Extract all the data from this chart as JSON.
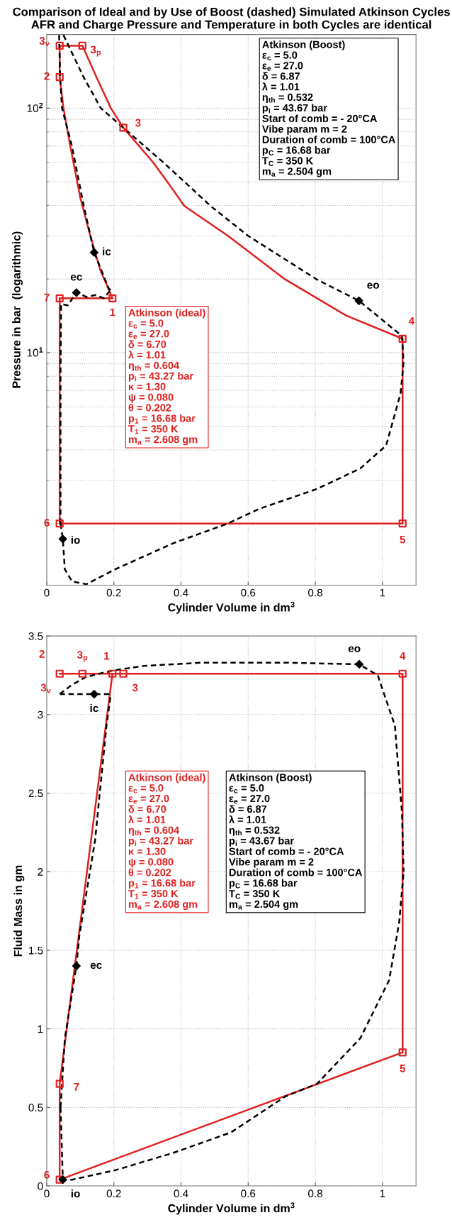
{
  "chart_data": [
    {
      "type": "line",
      "title": "Comparison of Ideal and by Use of Boost (dashed) Simulated Atkinson Cycles\nAFR and Charge Pressure and Temperature in both Cycles are identical",
      "xlabel": "Cylinder Volume in dm$^{3}$",
      "ylabel": "Pressure in bar  (logarithmic)",
      "xlim": [
        0,
        1.1
      ],
      "xticks": [
        0,
        0.2,
        0.4,
        0.6,
        0.8,
        1
      ],
      "ylim": [
        1.12,
        200
      ],
      "yticks": [
        {
          "value": 10,
          "label": "10$^{1}$"
        },
        {
          "value": 100,
          "label": "10$^{2}$"
        }
      ],
      "log": "y",
      "grid": true,
      "series": [
        {
          "line_style": "solid",
          "color": "#e02020",
          "x": [
            0.0385,
            0.05,
            0.07,
            0.1,
            0.13,
            0.16,
            0.1958,
            null,
            0.0385,
            0.0385,
            null,
            0.0385,
            0.1063,
            0.148,
            0.191,
            0.228,
            0.316,
            0.359,
            0.41,
            0.539,
            0.711,
            0.891,
            1.06,
            null,
            1.06,
            1.06,
            null,
            0.0385,
            1.06,
            null,
            0.0385,
            0.0385,
            null,
            0.0385,
            0.1958
          ],
          "values": [
            134,
            100,
            70,
            43,
            30,
            21.7,
            16.68,
            null,
            134,
            180,
            null,
            180,
            180,
            134,
            100,
            83.2,
            60.2,
            50,
            39.8,
            30.1,
            19.9,
            14.2,
            11.4,
            null,
            11.4,
            2.0,
            null,
            2.0,
            2.0,
            null,
            2.0,
            16.68,
            null,
            16.68,
            16.68
          ]
        },
        {
          "line_style": "dashed",
          "color": "#000000",
          "x": [
            0.0368,
            0.04,
            0.0455,
            0.075,
            0.11,
            0.1413,
            0.1853,
            0.191,
            null,
            0.0497,
            0.1098,
            0.161,
            0.228,
            0.346,
            0.41,
            0.488,
            0.599,
            0.805,
            0.93,
            1.058,
            1.063,
            null,
            0.0411,
            0.0479,
            0.0539,
            0.0754,
            0.118,
            0.204,
            0.376,
            0.539,
            0.634,
            0.805,
            0.934,
            1.011,
            1.054,
            1.063,
            null,
            0.0411,
            0.0411,
            0.0428,
            0.0626,
            0.0883,
            0.1184,
            0.1443,
            0.17,
            0.191
          ],
          "values": [
            199,
            134,
            100,
            70,
            40,
            25.7,
            18.2,
            18.1,
            null,
            199,
            134,
            100,
            83.2,
            60.2,
            50,
            39.8,
            30.1,
            19.9,
            16.3,
            11.7,
            9.17,
            null,
            2.0,
            1.73,
            1.3,
            1.16,
            1.13,
            1.3,
            1.66,
            2.0,
            2.3,
            2.77,
            3.36,
            4.17,
            6.81,
            9.17,
            null,
            2.0,
            8.45,
            15.8,
            15.6,
            17.6,
            16.9,
            17.2,
            16.7,
            18.1
          ]
        },
        {
          "type": "scatter",
          "marker": "square",
          "color": "#e02020",
          "x": [
            0.1958,
            0.0385,
            0.0385,
            0.1063,
            0.228,
            1.06,
            1.06,
            0.0385,
            0.0385
          ],
          "values": [
            16.68,
            134,
            180,
            180,
            83.2,
            11.4,
            2.0,
            2.0,
            16.68
          ]
        },
        {
          "type": "scatter",
          "marker": "diamond",
          "color": "#000000",
          "x": [
            0.1413,
            0.0883,
            0.93,
            0.0479
          ],
          "values": [
            25.7,
            17.6,
            16.3,
            1.73
          ]
        }
      ],
      "annotations": [
        "Atkinson (ideal)\nε$_{c}$ = 5.0\nε$_{e}$ = 27.0\nδ = 6.70\nλ = 1.01\nη$_{th}$ = 0.604\np$_{i}$ = 43.27 bar\nκ = 1.30\nψ = 0.080\nθ = 0.202\np$_{1}$ = 16.68 bar\nT$_{1}$ = 350 K\nm$_{a}$ = 2.608 gm",
        "Atkinson (Boost)\nε$_{c}$ = 5.0\nε$_{e}$ = 27.0\nδ = 6.87\nλ = 1.01\nη$_{th}$ = 0.532\np$_{i}$ = 43.67 bar\nStart of comb = - 20°CA\nVibe param m = 2\nDuration of comb = 100°CA\np$_{C}$ = 16.68 bar\nT$_{C}$ = 350 K\nm$_{a}$ = 2.504 gm",
        {
          "text": "1",
          "x": 0.1958,
          "y": 16.68
        },
        {
          "text": "2",
          "x": 0.0385,
          "y": 134
        },
        {
          "text": "3$_{v}$",
          "x": 0.0385,
          "y": 180
        },
        {
          "text": "3$_{p}$",
          "x": 0.1063,
          "y": 180
        },
        {
          "text": "3",
          "x": 0.228,
          "y": 83.2
        },
        {
          "text": "4",
          "x": 1.06,
          "y": 11.4
        },
        {
          "text": "5",
          "x": 1.06,
          "y": 2.0
        },
        {
          "text": "6",
          "x": 0.0385,
          "y": 2.0
        },
        {
          "text": "7",
          "x": 0.0385,
          "y": 16.68
        },
        {
          "text": "ic",
          "x": 0.1413,
          "y": 25.7
        },
        {
          "text": "ec",
          "x": 0.0883,
          "y": 17.6
        },
        {
          "text": "eo",
          "x": 0.93,
          "y": 16.3
        },
        {
          "text": "io",
          "x": 0.0479,
          "y": 1.73
        }
      ]
    },
    {
      "type": "line",
      "xlabel": "Cylinder Volume in dm$^{3}$",
      "ylabel": "Fluid Mass in gm",
      "xlim": [
        0,
        1.1
      ],
      "xticks": [
        0,
        0.2,
        0.4,
        0.6,
        0.8,
        1
      ],
      "ylim": [
        0,
        3.5
      ],
      "yticks": [
        0,
        0.5,
        1,
        1.5,
        2,
        2.5,
        3,
        3.5
      ],
      "grid": true,
      "series": [
        {
          "line_style": "solid",
          "color": "#e02020",
          "x": [
            0.0385,
            0.1063,
            0.1958,
            0.228,
            1.06,
            null,
            1.06,
            1.06,
            null,
            0.0385,
            1.06,
            null,
            0.0385,
            0.0385,
            null,
            0.0385,
            0.1958
          ],
          "values": [
            3.26,
            3.26,
            3.26,
            3.26,
            3.26,
            null,
            3.26,
            0.85,
            null,
            0.04,
            0.85,
            null,
            0.04,
            0.65,
            null,
            0.65,
            3.26
          ]
        },
        {
          "line_style": "dashed",
          "color": "#000000",
          "x": [
            0.0385,
            0.1413,
            0.191,
            null,
            0.0385,
            0.0754,
            0.118,
            0.1958,
            0.29,
            0.462,
            0.719,
            0.931,
            0.986,
            1.037,
            1.058,
            1.063,
            null,
            0.0411,
            0.0479,
            0.0754,
            0.204,
            0.376,
            0.548,
            0.711,
            0.805,
            0.934,
            1.02,
            1.05,
            1.063,
            null,
            0.0411,
            0.054,
            0.0883,
            0.097,
            0.144,
            0.178,
            0.191
          ],
          "values": [
            3.13,
            3.13,
            3.13,
            null,
            3.13,
            3.19,
            3.24,
            3.28,
            3.31,
            3.33,
            3.33,
            3.32,
            3.25,
            2.93,
            2.38,
            2.0,
            null,
            0.5,
            0.04,
            0.04,
            0.1,
            0.21,
            0.34,
            0.57,
            0.65,
            0.94,
            1.31,
            1.68,
            2.0,
            null,
            0.5,
            0.94,
            1.4,
            1.59,
            2.2,
            2.93,
            3.13
          ]
        },
        {
          "type": "scatter",
          "marker": "square",
          "color": "#e02020",
          "x": [
            0.1958,
            0.0385,
            0.1063,
            0.228,
            1.06,
            1.06,
            0.0385,
            0.0385
          ],
          "values": [
            3.26,
            3.26,
            3.26,
            3.26,
            3.26,
            0.85,
            0.04,
            0.65
          ]
        },
        {
          "type": "scatter",
          "marker": "diamond",
          "color": "#000000",
          "x": [
            0.1413,
            0.0883,
            0.931,
            0.0479
          ],
          "values": [
            3.13,
            1.4,
            3.32,
            0.04
          ]
        }
      ],
      "annotations": [
        "Atkinson (ideal)\nε$_{c}$ = 5.0\nε$_{e}$ = 27.0\nδ = 6.70\nλ = 1.01\nη$_{th}$ = 0.604\np$_{i}$ = 43.27 bar\nκ = 1.30\nψ = 0.080\nθ = 0.202\np$_{1}$ = 16.68 bar\nT$_{1}$ = 350 K\nm$_{a}$ = 2.608 gm",
        "Atkinson (Boost)\nε$_{c}$ = 5.0\nε$_{e}$ = 27.0\nδ = 6.87\nλ = 1.01\nη$_{th}$ = 0.532\np$_{i}$ = 43.67 bar\nStart of comb = - 20°CA\nVibe param m = 2\nDuration of comb = 100°CA\np$_{C}$ = 16.68 bar\nT$_{C}$ = 350 K\nm$_{a}$ = 2.504 gm",
        {
          "text": "1",
          "x": 0.1958,
          "y": 3.26
        },
        {
          "text": "2",
          "x": 0.0385,
          "y": 3.26
        },
        {
          "text": "3$_{v}$",
          "x": 0.0385,
          "y": 3.26
        },
        {
          "text": "3$_{p}$",
          "x": 0.1063,
          "y": 3.26
        },
        {
          "text": "3",
          "x": 0.228,
          "y": 3.26
        },
        {
          "text": "4",
          "x": 1.06,
          "y": 3.26
        },
        {
          "text": "5",
          "x": 1.06,
          "y": 0.85
        },
        {
          "text": "6",
          "x": 0.0385,
          "y": 0.04
        },
        {
          "text": "7",
          "x": 0.0385,
          "y": 0.65
        },
        {
          "text": "ic",
          "x": 0.1413,
          "y": 3.13
        },
        {
          "text": "ec",
          "x": 0.0883,
          "y": 1.4
        },
        {
          "text": "eo",
          "x": 0.931,
          "y": 3.32
        },
        {
          "text": "io",
          "x": 0.0479,
          "y": 0.04
        }
      ]
    }
  ]
}
